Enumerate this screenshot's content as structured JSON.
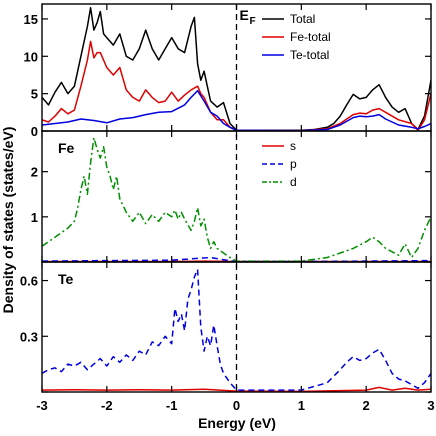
{
  "chart_data": {
    "type": "line",
    "xlabel": "Energy (eV)",
    "ylabel": "Density of states (states/eV)",
    "fermi_label": "E",
    "fermi_sub": "F",
    "fermi_energy": 0,
    "xlim": [
      -3,
      3
    ],
    "x_ticks": [
      -3,
      -2,
      -1,
      0,
      1,
      2,
      3
    ],
    "grid": false,
    "panels": [
      {
        "label": "",
        "ylim": [
          0,
          17
        ],
        "y_ticks": [
          0,
          5,
          10,
          15
        ],
        "legend_position": "top-right",
        "series": [
          {
            "name": "Total",
            "color": "#000000",
            "style": "solid",
            "x": [
              -3,
              -2.9,
              -2.8,
              -2.7,
              -2.6,
              -2.5,
              -2.4,
              -2.3,
              -2.25,
              -2.2,
              -2.15,
              -2.1,
              -2.05,
              -2.0,
              -1.9,
              -1.8,
              -1.7,
              -1.6,
              -1.5,
              -1.4,
              -1.3,
              -1.2,
              -1.1,
              -1.0,
              -0.9,
              -0.8,
              -0.7,
              -0.65,
              -0.6,
              -0.55,
              -0.5,
              -0.45,
              -0.4,
              -0.3,
              -0.2,
              -0.1,
              0,
              1.0,
              1.2,
              1.4,
              1.5,
              1.6,
              1.7,
              1.8,
              1.9,
              2.0,
              2.1,
              2.2,
              2.3,
              2.4,
              2.5,
              2.6,
              2.7,
              2.8,
              2.9,
              3.0
            ],
            "y": [
              4.5,
              3.5,
              5.2,
              6.5,
              5.0,
              6.0,
              10.0,
              14.0,
              16.5,
              13.5,
              14.5,
              16.0,
              13.0,
              12.5,
              11.5,
              13.0,
              10.0,
              9.5,
              11.0,
              13.5,
              11.0,
              9.5,
              11.0,
              12.5,
              11.0,
              10.5,
              14.0,
              15.2,
              9.0,
              6.8,
              8.0,
              6.0,
              4.0,
              3.2,
              3.8,
              1.0,
              0.1,
              0.1,
              0.2,
              0.5,
              1.0,
              2.0,
              3.5,
              4.9,
              4.3,
              4.5,
              5.5,
              6.2,
              4.5,
              3.2,
              2.5,
              3.0,
              1.0,
              0.2,
              2.0,
              6.8
            ]
          },
          {
            "name": "Fe-total",
            "color": "#e00000",
            "style": "solid",
            "x": [
              -3,
              -2.9,
              -2.8,
              -2.7,
              -2.6,
              -2.5,
              -2.4,
              -2.3,
              -2.25,
              -2.2,
              -2.15,
              -2.1,
              -2.0,
              -1.9,
              -1.8,
              -1.7,
              -1.6,
              -1.5,
              -1.4,
              -1.3,
              -1.2,
              -1.1,
              -1.0,
              -0.9,
              -0.8,
              -0.7,
              -0.6,
              -0.55,
              -0.5,
              -0.4,
              -0.3,
              -0.2,
              -0.1,
              0,
              1.0,
              1.4,
              1.6,
              1.8,
              1.9,
              2.0,
              2.1,
              2.2,
              2.3,
              2.5,
              2.7,
              2.8,
              2.9,
              3.0
            ],
            "y": [
              1.5,
              1.2,
              2.0,
              3.0,
              2.3,
              2.8,
              6.0,
              9.5,
              12.0,
              9.8,
              10.5,
              10.5,
              8.5,
              7.5,
              8.5,
              5.5,
              4.5,
              4.0,
              5.5,
              4.5,
              3.8,
              4.0,
              5.2,
              4.0,
              4.8,
              5.5,
              6.0,
              5.0,
              4.5,
              2.5,
              1.5,
              1.5,
              0.5,
              0.1,
              0.05,
              0.3,
              1.0,
              2.2,
              2.4,
              2.3,
              2.8,
              3.0,
              2.5,
              1.5,
              1.0,
              0.1,
              1.5,
              5.0
            ]
          },
          {
            "name": "Te-total",
            "color": "#0000e0",
            "style": "solid",
            "x": [
              -3,
              -2.8,
              -2.6,
              -2.4,
              -2.2,
              -2.0,
              -1.8,
              -1.6,
              -1.4,
              -1.2,
              -1.0,
              -0.8,
              -0.7,
              -0.6,
              -0.5,
              -0.4,
              -0.3,
              -0.2,
              -0.1,
              0,
              1.0,
              1.4,
              1.6,
              1.8,
              1.9,
              2.0,
              2.1,
              2.2,
              2.3,
              2.5,
              2.7,
              2.8,
              2.9,
              3.0
            ],
            "y": [
              0.8,
              1.0,
              1.2,
              1.6,
              1.4,
              1.1,
              1.6,
              1.8,
              2.2,
              2.5,
              2.6,
              3.5,
              4.5,
              5.4,
              4.0,
              2.5,
              2.0,
              1.0,
              0.5,
              0.1,
              0.05,
              0.2,
              0.8,
              1.8,
              2.0,
              1.9,
              2.0,
              2.2,
              1.6,
              0.8,
              0.5,
              0.3,
              0.6,
              1.0
            ]
          }
        ]
      },
      {
        "label": "Fe",
        "ylim": [
          0,
          2.9
        ],
        "y_ticks": [
          0,
          1,
          2
        ],
        "legend_position": "top-center",
        "series": [
          {
            "name": "s",
            "color": "#e00000",
            "style": "solid",
            "x": [
              -3,
              -2,
              -1,
              -0.5,
              0,
              1,
              2,
              2.5,
              3
            ],
            "y": [
              0.01,
              0.01,
              0.01,
              0.02,
              0.01,
              0.01,
              0.01,
              0.01,
              0.01
            ]
          },
          {
            "name": "p",
            "color": "#0000e0",
            "style": "dashed",
            "x": [
              -3,
              -2,
              -1,
              -0.6,
              -0.4,
              -0.2,
              0,
              1,
              2,
              3
            ],
            "y": [
              0.02,
              0.03,
              0.04,
              0.08,
              0.1,
              0.05,
              0.01,
              0.01,
              0.02,
              0.03
            ]
          },
          {
            "name": "d",
            "color": "#009000",
            "style": "dashdot",
            "x": [
              -3,
              -2.9,
              -2.8,
              -2.7,
              -2.6,
              -2.5,
              -2.45,
              -2.4,
              -2.35,
              -2.3,
              -2.25,
              -2.2,
              -2.15,
              -2.1,
              -2.05,
              -2.0,
              -1.95,
              -1.9,
              -1.85,
              -1.8,
              -1.7,
              -1.6,
              -1.5,
              -1.4,
              -1.3,
              -1.2,
              -1.1,
              -1.05,
              -1.0,
              -0.95,
              -0.9,
              -0.85,
              -0.8,
              -0.7,
              -0.65,
              -0.6,
              -0.55,
              -0.5,
              -0.45,
              -0.4,
              -0.35,
              -0.3,
              -0.2,
              -0.1,
              0,
              1.0,
              1.4,
              1.6,
              1.8,
              2.0,
              2.1,
              2.2,
              2.3,
              2.5,
              2.6,
              2.7,
              2.8,
              2.9,
              3.0
            ],
            "y": [
              0.35,
              0.45,
              0.55,
              0.65,
              0.75,
              0.9,
              1.2,
              1.6,
              1.9,
              1.5,
              2.2,
              2.75,
              2.5,
              2.3,
              2.55,
              2.1,
              1.9,
              1.6,
              1.9,
              1.4,
              1.1,
              0.9,
              1.1,
              0.85,
              1.05,
              0.9,
              1.1,
              1.05,
              1.0,
              1.15,
              0.95,
              1.1,
              0.95,
              0.7,
              0.9,
              1.2,
              0.8,
              0.95,
              0.55,
              0.3,
              0.45,
              0.3,
              0.2,
              0.1,
              0.02,
              0.02,
              0.1,
              0.2,
              0.3,
              0.45,
              0.55,
              0.45,
              0.3,
              0.15,
              0.4,
              0.1,
              0.3,
              0.7,
              1.0
            ]
          }
        ]
      },
      {
        "label": "Te",
        "ylim": [
          0,
          0.7
        ],
        "y_ticks": [
          0,
          0.3,
          0.6
        ],
        "series": [
          {
            "name": "s",
            "color": "#e00000",
            "style": "solid",
            "x": [
              -3,
              -2.5,
              -2,
              -1.5,
              -1,
              -0.5,
              0,
              1,
              2,
              2.2,
              2.4,
              2.6,
              2.8,
              3
            ],
            "y": [
              0.01,
              0.012,
              0.01,
              0.012,
              0.01,
              0.015,
              0.005,
              0.003,
              0.01,
              0.025,
              0.01,
              0.02,
              0.01,
              0.015
            ]
          },
          {
            "name": "p",
            "color": "#0000e0",
            "style": "dashed",
            "x": [
              -3,
              -2.9,
              -2.8,
              -2.7,
              -2.6,
              -2.5,
              -2.4,
              -2.3,
              -2.2,
              -2.1,
              -2.0,
              -1.9,
              -1.8,
              -1.7,
              -1.6,
              -1.5,
              -1.4,
              -1.3,
              -1.2,
              -1.1,
              -1.0,
              -0.95,
              -0.9,
              -0.85,
              -0.8,
              -0.75,
              -0.7,
              -0.65,
              -0.6,
              -0.55,
              -0.5,
              -0.45,
              -0.4,
              -0.35,
              -0.3,
              -0.25,
              -0.2,
              -0.1,
              0,
              1.0,
              1.4,
              1.6,
              1.7,
              1.8,
              1.9,
              2.0,
              2.1,
              2.2,
              2.3,
              2.4,
              2.5,
              2.6,
              2.7,
              2.8,
              2.9,
              3.0
            ],
            "y": [
              0.1,
              0.12,
              0.13,
              0.11,
              0.15,
              0.14,
              0.16,
              0.12,
              0.15,
              0.18,
              0.14,
              0.19,
              0.16,
              0.2,
              0.17,
              0.22,
              0.2,
              0.27,
              0.25,
              0.3,
              0.26,
              0.45,
              0.38,
              0.42,
              0.33,
              0.5,
              0.55,
              0.62,
              0.66,
              0.35,
              0.22,
              0.3,
              0.25,
              0.36,
              0.25,
              0.15,
              0.1,
              0.05,
              0.01,
              0.01,
              0.05,
              0.12,
              0.16,
              0.19,
              0.17,
              0.18,
              0.21,
              0.23,
              0.17,
              0.1,
              0.07,
              0.06,
              0.04,
              0.02,
              0.05,
              0.1
            ]
          }
        ]
      }
    ]
  }
}
